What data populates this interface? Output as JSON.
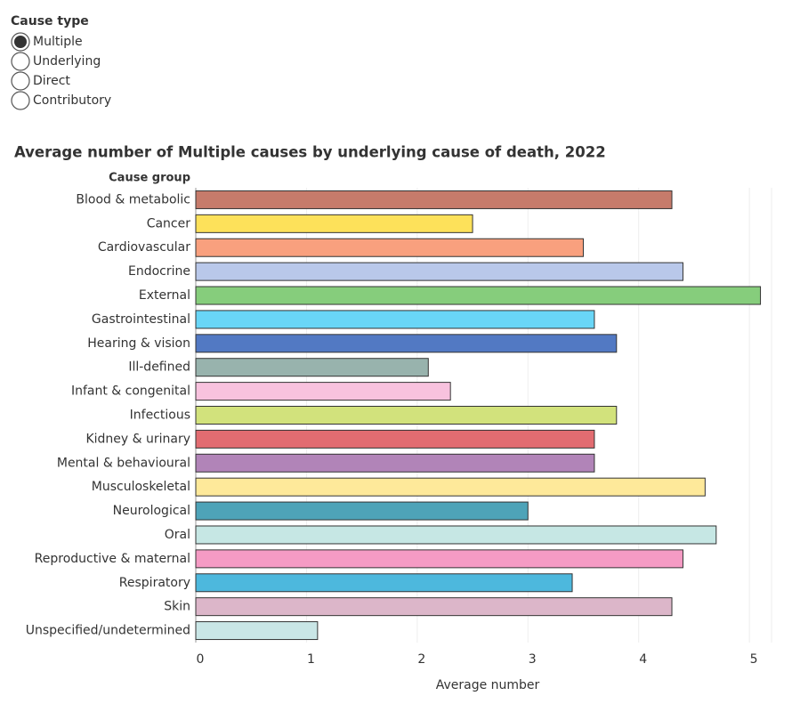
{
  "controls": {
    "title": "Cause type",
    "options": [
      "Multiple",
      "Underlying",
      "Direct",
      "Contributory"
    ],
    "selected": "Multiple"
  },
  "chart_data": {
    "type": "bar",
    "orientation": "horizontal",
    "title": "Average number of Multiple causes by underlying cause of death, 2022",
    "y_label": "Cause group",
    "x_label": "Average number",
    "categories": [
      "Blood & metabolic",
      "Cancer",
      "Cardiovascular",
      "Endocrine",
      "External",
      "Gastrointestinal",
      "Hearing & vision",
      "Ill-defined",
      "Infant & congenital",
      "Infectious",
      "Kidney & urinary",
      "Mental & behavioural",
      "Musculoskeletal",
      "Neurological",
      "Oral",
      "Reproductive & maternal",
      "Respiratory",
      "Skin",
      "Unspecified/undetermined"
    ],
    "values": [
      4.3,
      2.5,
      3.5,
      4.4,
      5.1,
      3.6,
      3.8,
      2.1,
      2.3,
      3.8,
      3.6,
      3.6,
      4.6,
      3.0,
      4.7,
      4.4,
      3.4,
      4.3,
      1.1
    ],
    "colors": [
      "#c67b6b",
      "#fde15a",
      "#f9a07e",
      "#b9c8ea",
      "#86cd7c",
      "#69d6f7",
      "#5279c3",
      "#98b3ad",
      "#f8c2de",
      "#d2e27c",
      "#e26c71",
      "#b184b8",
      "#fee99a",
      "#4ea3b8",
      "#c6e7e4",
      "#f59bc4",
      "#4db8dd",
      "#dcb6c9",
      "#c9e6e6"
    ],
    "xlim": [
      0,
      5.2
    ],
    "xticks": [
      0,
      1,
      2,
      3,
      4,
      5
    ],
    "grid": true
  }
}
